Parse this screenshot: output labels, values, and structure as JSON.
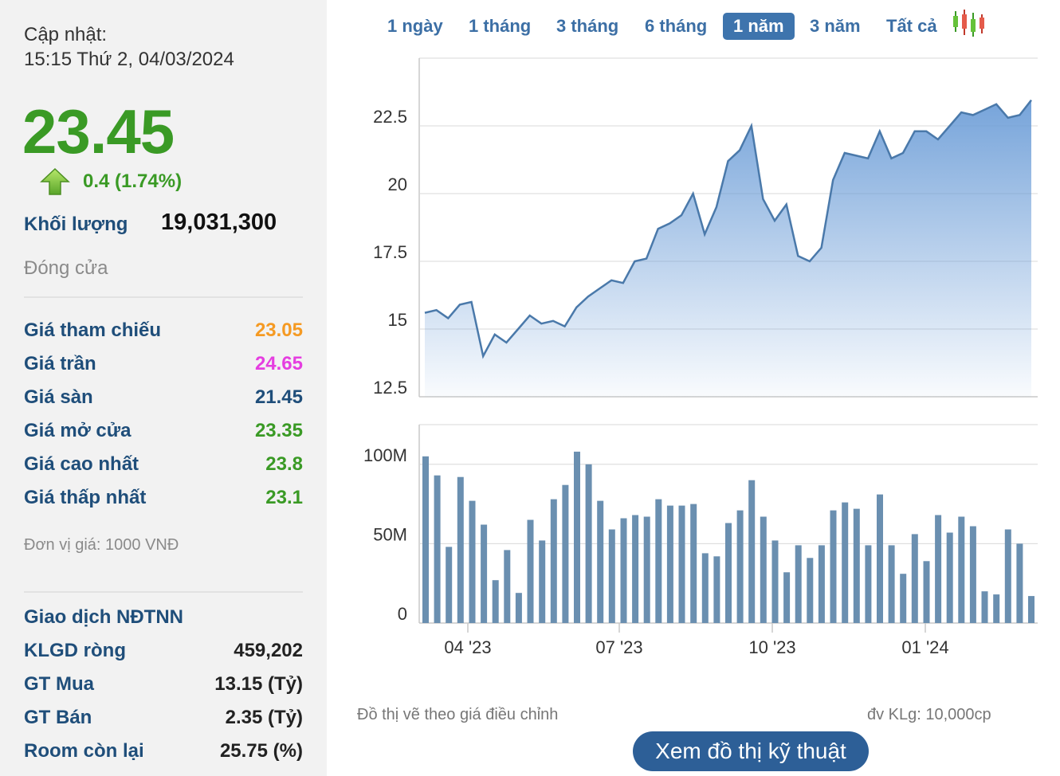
{
  "update": {
    "label": "Cập nhật:",
    "time": "15:15 Thứ 2, 04/03/2024"
  },
  "quote": {
    "price": "23.45",
    "change": "0.4 (1.74%)",
    "volume_label": "Khối lượng",
    "volume": "19,031,300",
    "session": "Đóng cửa"
  },
  "prices": [
    {
      "label": "Giá tham chiếu",
      "value": "23.05",
      "color": "#f59a23"
    },
    {
      "label": "Giá trần",
      "value": "24.65",
      "color": "#e53ee0"
    },
    {
      "label": "Giá sàn",
      "value": "21.45",
      "color": "#1f4e7a"
    },
    {
      "label": "Giá mở cửa",
      "value": "23.35",
      "color": "#3a9a25"
    },
    {
      "label": "Giá cao nhất",
      "value": "23.8",
      "color": "#3a9a25"
    },
    {
      "label": "Giá thấp nhất",
      "value": "23.1",
      "color": "#3a9a25"
    }
  ],
  "unit_note": "Đơn vị giá: 1000 VNĐ",
  "foreign": {
    "title": "Giao dịch NĐTNN",
    "rows": [
      {
        "label": "KLGD ròng",
        "value": "459,202"
      },
      {
        "label": "GT Mua",
        "value": "13.15 (Tỷ)"
      },
      {
        "label": "GT Bán",
        "value": "2.35 (Tỷ)"
      },
      {
        "label": "Room còn lại",
        "value": "25.75 (%)"
      }
    ]
  },
  "tabs": [
    "1 ngày",
    "1 tháng",
    "3 tháng",
    "6 tháng",
    "1 năm",
    "3 năm",
    "Tất cả"
  ],
  "active_tab": "1 năm",
  "footer": {
    "note": "Đồ thị vẽ theo giá điều chỉnh",
    "volume_unit": "đv KLg: 10,000cp",
    "button": "Xem đồ thị kỹ thuật"
  },
  "colors": {
    "up": "#3a9a25",
    "line": "#4a79aa",
    "bar": "#6a8fb0",
    "button": "#2d5f97"
  },
  "chart_data": [
    {
      "type": "area",
      "series": [
        {
          "values": [
            15.6,
            15.7,
            15.4,
            15.9,
            16.0,
            14.0,
            14.8,
            14.5,
            15.0,
            15.5,
            15.2,
            15.3,
            15.1,
            15.8,
            16.2,
            16.5,
            16.8,
            16.7,
            17.5,
            17.6,
            18.7,
            18.9,
            19.2,
            20.0,
            18.5,
            19.5,
            21.2,
            21.6,
            22.5,
            19.8,
            19.0,
            19.6,
            17.7,
            17.5,
            18.0,
            20.5,
            21.5,
            21.4,
            21.3,
            22.3,
            21.3,
            21.5,
            22.3,
            22.3,
            22.0,
            22.5,
            23.0,
            22.9,
            23.1,
            23.3,
            22.8,
            22.9,
            23.45
          ]
        }
      ],
      "x_ticks": [
        "04 '23",
        "07 '23",
        "10 '23",
        "01 '24"
      ],
      "y_ticks": [
        "12.5",
        "15",
        "17.5",
        "20",
        "22.5"
      ],
      "ylim": [
        12.5,
        25
      ]
    },
    {
      "type": "bar",
      "series": [
        {
          "values": [
            105,
            93,
            48,
            92,
            77,
            62,
            27,
            46,
            19,
            65,
            52,
            78,
            87,
            108,
            100,
            77,
            59,
            66,
            68,
            67,
            78,
            74,
            74,
            75,
            44,
            42,
            63,
            71,
            90,
            67,
            52,
            32,
            49,
            41,
            49,
            71,
            76,
            72,
            49,
            81,
            49,
            31,
            56,
            39,
            68,
            57,
            67,
            61,
            20,
            18,
            59,
            50,
            17
          ]
        }
      ],
      "x_ticks": [
        "04 '23",
        "07 '23",
        "10 '23",
        "01 '24"
      ],
      "y_ticks": [
        "0",
        "50M",
        "100M"
      ],
      "ylim": [
        0,
        125
      ]
    }
  ]
}
